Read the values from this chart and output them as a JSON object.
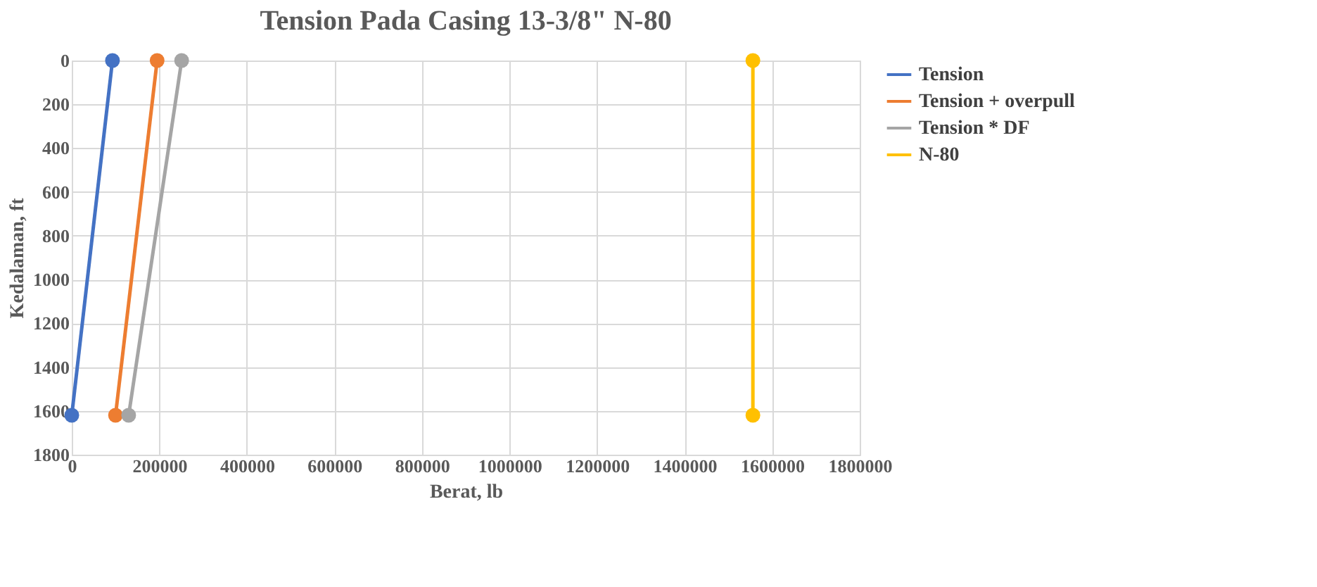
{
  "chart_data": {
    "type": "line",
    "title": "Tension Pada Casing 13-3/8\" N-80",
    "xlabel": "Berat, lb",
    "ylabel": "Kedalaman, ft",
    "series": [
      {
        "name": "Tension",
        "color": "#4472c4",
        "x": [
          93000,
          0
        ],
        "values": [
          0,
          1620
        ]
      },
      {
        "name": "Tension + overpull",
        "color": "#ed7d31",
        "x": [
          195000,
          100000
        ],
        "values": [
          0,
          1620
        ]
      },
      {
        "name": "Tension * DF",
        "color": "#a5a5a5",
        "x": [
          251000,
          130000
        ],
        "values": [
          0,
          1620
        ]
      },
      {
        "name": "N-80",
        "color": "#ffc000",
        "x": [
          1556000,
          1556000
        ],
        "values": [
          0,
          1620
        ]
      }
    ],
    "xlim": [
      0,
      1800000
    ],
    "xticks": [
      0,
      200000,
      400000,
      600000,
      800000,
      1000000,
      1200000,
      1400000,
      1600000,
      1800000
    ],
    "ylim": [
      1800,
      0
    ],
    "yticks": [
      0,
      200,
      400,
      600,
      800,
      1000,
      1200,
      1400,
      1600,
      1800
    ],
    "grid": true,
    "legend": "right",
    "marker": "circle",
    "line_style": "solid"
  }
}
